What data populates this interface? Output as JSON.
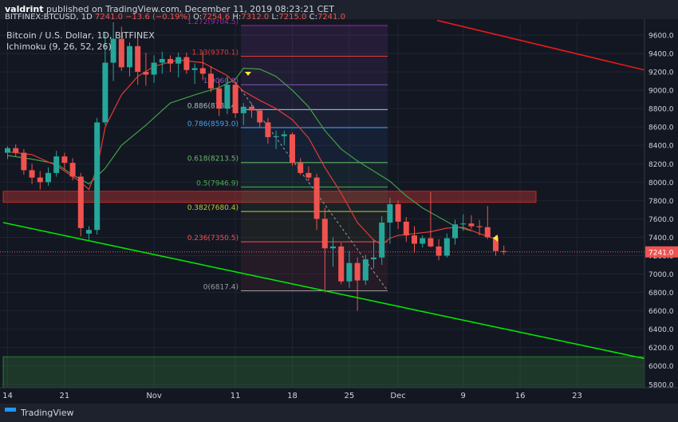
{
  "header": {
    "user": "valdrint",
    "published_text": " published on TradingView.com, December 11, 2019 08:23:21 CET"
  },
  "ohlc": {
    "symbol": "BITFINEX:BTCUSD, 1D",
    "last": "7241.0",
    "change": "−13.6 (−0.19%)",
    "o": "7254.6",
    "h": "7312.0",
    "l": "7215.0",
    "c": "7241.0"
  },
  "legend": {
    "title": "Bitcoin / U.S. Dollar, 1D, BITFINEX",
    "indicator": "Ichimoku (9, 26, 52, 26)"
  },
  "footer": {
    "brand": "TradingView"
  },
  "colors": {
    "up": "#26a69a",
    "down": "#ef5350",
    "background": "#131722",
    "green_line": "#00e600",
    "red_line": "#e61919",
    "conversion_line": "#e53935",
    "base_line": "#43a047"
  },
  "chart_data": {
    "type": "candlestick",
    "title": "Bitcoin / U.S. Dollar, 1D, BITFINEX",
    "ylim": [
      5800,
      9800
    ],
    "y_ticks": [
      5800,
      6000,
      6200,
      6400,
      6600,
      6800,
      7000,
      7200,
      7400,
      7600,
      7800,
      8000,
      8200,
      8400,
      8600,
      8800,
      9000,
      9200,
      9400,
      9600
    ],
    "x_ticks": [
      {
        "label": "14",
        "day": 0
      },
      {
        "label": "21",
        "day": 7
      },
      {
        "label": "Nov",
        "day": 18
      },
      {
        "label": "11",
        "day": 28
      },
      {
        "label": "18",
        "day": 35
      },
      {
        "label": "25",
        "day": 42
      },
      {
        "label": "Dec",
        "day": 48
      },
      {
        "label": "9",
        "day": 56
      },
      {
        "label": "16",
        "day": 63
      },
      {
        "label": "23",
        "day": 70
      }
    ],
    "last_price": "7241.0",
    "candles": [
      {
        "o": 8320,
        "h": 8390,
        "l": 8250,
        "c": 8370
      },
      {
        "o": 8370,
        "h": 8410,
        "l": 8280,
        "c": 8320
      },
      {
        "o": 8320,
        "h": 8360,
        "l": 8080,
        "c": 8130
      },
      {
        "o": 8130,
        "h": 8200,
        "l": 7980,
        "c": 8050
      },
      {
        "o": 8050,
        "h": 8120,
        "l": 7920,
        "c": 8000
      },
      {
        "o": 8000,
        "h": 8160,
        "l": 7960,
        "c": 8100
      },
      {
        "o": 8100,
        "h": 8340,
        "l": 8060,
        "c": 8280
      },
      {
        "o": 8280,
        "h": 8320,
        "l": 8130,
        "c": 8210
      },
      {
        "o": 8210,
        "h": 8260,
        "l": 8020,
        "c": 8060
      },
      {
        "o": 8060,
        "h": 8100,
        "l": 7410,
        "c": 7500
      },
      {
        "o": 7440,
        "h": 7520,
        "l": 7370,
        "c": 7480
      },
      {
        "o": 7480,
        "h": 8700,
        "l": 7430,
        "c": 8650
      },
      {
        "o": 8650,
        "h": 9620,
        "l": 8620,
        "c": 9300
      },
      {
        "o": 9300,
        "h": 10350,
        "l": 9100,
        "c": 9560
      },
      {
        "o": 9560,
        "h": 9690,
        "l": 9210,
        "c": 9250
      },
      {
        "o": 9250,
        "h": 9520,
        "l": 9150,
        "c": 9480
      },
      {
        "o": 9480,
        "h": 9580,
        "l": 9060,
        "c": 9200
      },
      {
        "o": 9200,
        "h": 9410,
        "l": 9050,
        "c": 9170
      },
      {
        "o": 9170,
        "h": 9380,
        "l": 9080,
        "c": 9300
      },
      {
        "o": 9300,
        "h": 9420,
        "l": 9180,
        "c": 9340
      },
      {
        "o": 9340,
        "h": 9380,
        "l": 9200,
        "c": 9290
      },
      {
        "o": 9290,
        "h": 9410,
        "l": 9140,
        "c": 9360
      },
      {
        "o": 9360,
        "h": 9410,
        "l": 9180,
        "c": 9220
      },
      {
        "o": 9220,
        "h": 9290,
        "l": 9070,
        "c": 9240
      },
      {
        "o": 9240,
        "h": 9430,
        "l": 9110,
        "c": 9180
      },
      {
        "o": 9180,
        "h": 9260,
        "l": 8980,
        "c": 9020
      },
      {
        "o": 9020,
        "h": 9120,
        "l": 8720,
        "c": 8800
      },
      {
        "o": 8800,
        "h": 9150,
        "l": 8740,
        "c": 9060
      },
      {
        "o": 9060,
        "h": 9080,
        "l": 8700,
        "c": 8750
      },
      {
        "o": 8750,
        "h": 8860,
        "l": 8620,
        "c": 8820
      },
      {
        "o": 8820,
        "h": 8860,
        "l": 8700,
        "c": 8780
      },
      {
        "o": 8780,
        "h": 8800,
        "l": 8590,
        "c": 8650
      },
      {
        "o": 8650,
        "h": 8700,
        "l": 8420,
        "c": 8490
      },
      {
        "o": 8490,
        "h": 8560,
        "l": 8360,
        "c": 8500
      },
      {
        "o": 8500,
        "h": 8560,
        "l": 8400,
        "c": 8520
      },
      {
        "o": 8520,
        "h": 8540,
        "l": 8180,
        "c": 8210
      },
      {
        "o": 8210,
        "h": 8260,
        "l": 8080,
        "c": 8100
      },
      {
        "o": 8100,
        "h": 8170,
        "l": 8010,
        "c": 8050
      },
      {
        "o": 8050,
        "h": 8090,
        "l": 7480,
        "c": 7600
      },
      {
        "o": 7600,
        "h": 7720,
        "l": 6800,
        "c": 7280
      },
      {
        "o": 7280,
        "h": 7400,
        "l": 7080,
        "c": 7300
      },
      {
        "o": 7300,
        "h": 7340,
        "l": 6890,
        "c": 6920
      },
      {
        "o": 6920,
        "h": 7250,
        "l": 6850,
        "c": 7120
      },
      {
        "o": 7120,
        "h": 7180,
        "l": 6600,
        "c": 6930
      },
      {
        "o": 6930,
        "h": 7210,
        "l": 6880,
        "c": 7160
      },
      {
        "o": 7160,
        "h": 7380,
        "l": 7060,
        "c": 7180
      },
      {
        "o": 7180,
        "h": 7630,
        "l": 7100,
        "c": 7560
      },
      {
        "o": 7560,
        "h": 7830,
        "l": 7330,
        "c": 7760
      },
      {
        "o": 7760,
        "h": 7800,
        "l": 7490,
        "c": 7570
      },
      {
        "o": 7570,
        "h": 7620,
        "l": 7350,
        "c": 7420
      },
      {
        "o": 7420,
        "h": 7520,
        "l": 7230,
        "c": 7330
      },
      {
        "o": 7330,
        "h": 7420,
        "l": 7290,
        "c": 7390
      },
      {
        "o": 7390,
        "h": 7890,
        "l": 7290,
        "c": 7300
      },
      {
        "o": 7300,
        "h": 7380,
        "l": 7150,
        "c": 7200
      },
      {
        "o": 7200,
        "h": 7440,
        "l": 7180,
        "c": 7390
      },
      {
        "o": 7390,
        "h": 7590,
        "l": 7320,
        "c": 7540
      },
      {
        "o": 7540,
        "h": 7650,
        "l": 7470,
        "c": 7550
      },
      {
        "o": 7550,
        "h": 7640,
        "l": 7490,
        "c": 7520
      },
      {
        "o": 7520,
        "h": 7590,
        "l": 7420,
        "c": 7510
      },
      {
        "o": 7510,
        "h": 7740,
        "l": 7380,
        "c": 7400
      },
      {
        "o": 7400,
        "h": 7420,
        "l": 7200,
        "c": 7250
      },
      {
        "o": 7250,
        "h": 7310,
        "l": 7210,
        "c": 7240
      }
    ],
    "conversion_line": [
      [
        0,
        8330
      ],
      [
        3,
        8300
      ],
      [
        6,
        8180
      ],
      [
        9,
        8000
      ],
      [
        10,
        7920
      ],
      [
        11,
        8150
      ],
      [
        12,
        8600
      ],
      [
        14,
        8950
      ],
      [
        16,
        9150
      ],
      [
        18,
        9260
      ],
      [
        21,
        9330
      ],
      [
        24,
        9300
      ],
      [
        27,
        9160
      ],
      [
        29,
        8990
      ],
      [
        31,
        8890
      ],
      [
        33,
        8800
      ],
      [
        35,
        8680
      ],
      [
        37,
        8480
      ],
      [
        39,
        8160
      ],
      [
        41,
        7880
      ],
      [
        43,
        7560
      ],
      [
        45,
        7370
      ],
      [
        46,
        7320
      ],
      [
        47,
        7390
      ],
      [
        48,
        7420
      ],
      [
        50,
        7440
      ],
      [
        52,
        7460
      ],
      [
        54,
        7500
      ],
      [
        56,
        7510
      ],
      [
        58,
        7440
      ],
      [
        60,
        7380
      ]
    ],
    "base_line": [
      [
        0,
        8290
      ],
      [
        3,
        8250
      ],
      [
        6,
        8200
      ],
      [
        8,
        8080
      ],
      [
        10,
        7980
      ],
      [
        12,
        8150
      ],
      [
        14,
        8400
      ],
      [
        17,
        8620
      ],
      [
        20,
        8860
      ],
      [
        23,
        8950
      ],
      [
        26,
        9030
      ],
      [
        28,
        9120
      ],
      [
        29,
        9240
      ],
      [
        31,
        9230
      ],
      [
        33,
        9150
      ],
      [
        35,
        9000
      ],
      [
        37,
        8820
      ],
      [
        39,
        8560
      ],
      [
        41,
        8360
      ],
      [
        43,
        8230
      ],
      [
        45,
        8120
      ],
      [
        47,
        8010
      ],
      [
        49,
        7850
      ],
      [
        51,
        7720
      ],
      [
        53,
        7620
      ],
      [
        55,
        7520
      ],
      [
        57,
        7470
      ]
    ],
    "fibonacci": [
      {
        "label": "1.272(9704.5)",
        "price": 9704.5
      },
      {
        "label": "1.13(9370.1)",
        "price": 9370.1
      },
      {
        "label": "1(9060.0)",
        "price": 9060
      },
      {
        "label": "0.886(8789.4)",
        "price": 8789.4
      },
      {
        "label": "0.786(8593.0)",
        "price": 8593
      },
      {
        "label": "0.618(8213.5)",
        "price": 8213.5
      },
      {
        "label": "0.5(7946.9)",
        "price": 7946.9
      },
      {
        "label": "0.382(7680.4)",
        "price": 7680.4
      },
      {
        "label": "0.236(7350.5)",
        "price": 7350.5
      },
      {
        "label": "0(6817.4)",
        "price": 6817.4
      }
    ],
    "resistance_zone": [
      7780,
      7900
    ],
    "support_zone": [
      5800,
      6100
    ]
  }
}
